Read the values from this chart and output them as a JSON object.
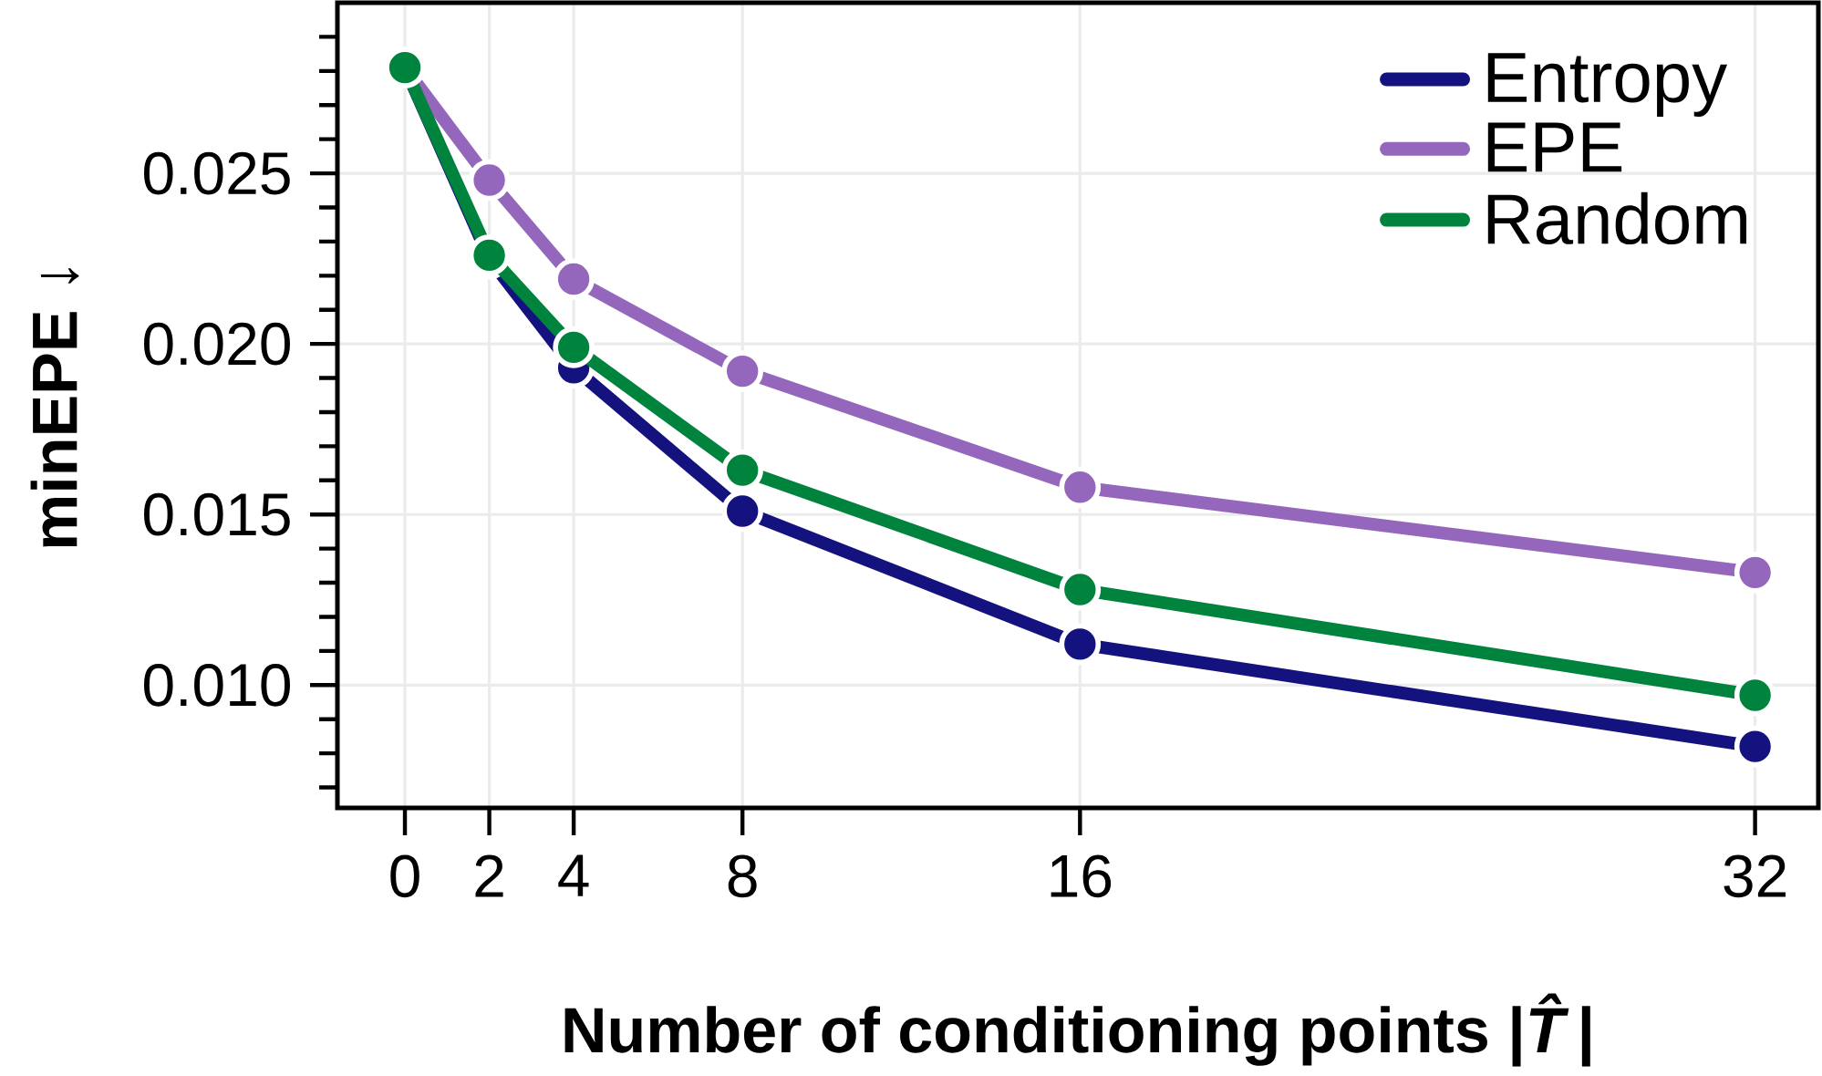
{
  "chart_data": {
    "type": "line",
    "xlabel": "Number of conditioning points |*T̂*|",
    "ylabel": "minEPE ↓",
    "x": [
      0,
      2,
      4,
      8,
      16,
      32
    ],
    "series": [
      {
        "name": "Entropy",
        "color": "#14127f",
        "values": [
          0.0281,
          0.0225,
          0.0193,
          0.0151,
          0.0112,
          0.0082
        ]
      },
      {
        "name": "EPE",
        "color": "#9467bd",
        "values": [
          0.0281,
          0.0248,
          0.0219,
          0.0192,
          0.0158,
          0.0133
        ]
      },
      {
        "name": "Random",
        "color": "#00843d",
        "values": [
          0.0281,
          0.0226,
          0.0199,
          0.0163,
          0.0128,
          0.0097
        ]
      }
    ],
    "xlim": [
      -1.6,
      33.5
    ],
    "ylim": [
      0.0064,
      0.03
    ],
    "xticks": [
      0,
      2,
      4,
      8,
      16,
      32
    ],
    "yticks": [
      {
        "value": 0.007,
        "label": null
      },
      {
        "value": 0.008,
        "label": null
      },
      {
        "value": 0.009,
        "label": null
      },
      {
        "value": 0.01,
        "label": "0.010"
      },
      {
        "value": 0.011,
        "label": null
      },
      {
        "value": 0.012,
        "label": null
      },
      {
        "value": 0.013,
        "label": null
      },
      {
        "value": 0.014,
        "label": null
      },
      {
        "value": 0.015,
        "label": "0.015"
      },
      {
        "value": 0.016,
        "label": null
      },
      {
        "value": 0.017,
        "label": null
      },
      {
        "value": 0.018,
        "label": null
      },
      {
        "value": 0.019,
        "label": null
      },
      {
        "value": 0.02,
        "label": "0.020"
      },
      {
        "value": 0.021,
        "label": null
      },
      {
        "value": 0.022,
        "label": null
      },
      {
        "value": 0.023,
        "label": null
      },
      {
        "value": 0.024,
        "label": null
      },
      {
        "value": 0.025,
        "label": "0.025"
      },
      {
        "value": 0.026,
        "label": null
      },
      {
        "value": 0.027,
        "label": null
      },
      {
        "value": 0.028,
        "label": null
      },
      {
        "value": 0.029,
        "label": null
      }
    ],
    "grid": true,
    "legend": "top right",
    "marker": "circle",
    "line_style": "solid"
  }
}
